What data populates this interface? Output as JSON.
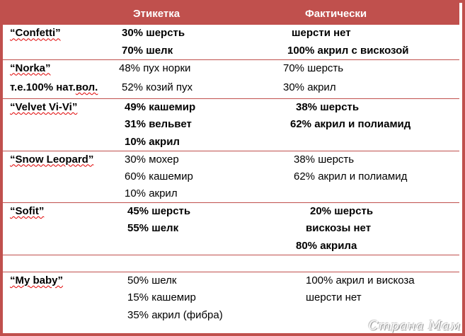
{
  "header": {
    "col1": "",
    "col2": "Этикетка",
    "col3": "Фактически"
  },
  "rows": [
    {
      "name": "“Confetti”",
      "label": "30% шерсть",
      "actual": "шерсти нет",
      "bold": true,
      "lp": 13,
      "ap": 25
    },
    {
      "name": "",
      "label": "70% шелк",
      "actual": "100% акрил с вискозой",
      "bold": true,
      "lp": 13,
      "ap": 19
    },
    {
      "name": "“Norka”",
      "label": "48% пух норки",
      "actual": "70% шерсть",
      "bold": false,
      "lp": 9,
      "ap": 13
    },
    {
      "name": "т.е.100% нат.вол.",
      "label": "52% козий пух",
      "actual": "30% акрил",
      "bold": false,
      "lp": 13,
      "ap": 13
    },
    {
      "name": "“Velvet Vi-Vi”",
      "label": "49% кашемир",
      "actual": "38% шерсть",
      "bold": true,
      "lp": 17,
      "ap": 31
    },
    {
      "name": "",
      "label": "31% вельвет",
      "actual": "62% акрил и полиамид",
      "bold": true,
      "lp": 17,
      "ap": 23
    },
    {
      "name": "",
      "label": "10% акрил",
      "actual": "",
      "bold": true,
      "lp": 17,
      "ap": 0
    },
    {
      "name": "“Snow Leopard”",
      "label": "30% мохер",
      "actual": "38% шерсть",
      "bold": false,
      "lp": 17,
      "ap": 28
    },
    {
      "name": "",
      "label": "60% кашемир",
      "actual": "62% акрил и полиамид",
      "bold": false,
      "lp": 17,
      "ap": 28
    },
    {
      "name": "",
      "label": "10% акрил",
      "actual": "",
      "bold": false,
      "lp": 17,
      "ap": 0
    },
    {
      "name": "“Sofit”",
      "label": "45% шерсть",
      "actual": "20% шерсть",
      "bold": true,
      "lp": 21,
      "ap": 51
    },
    {
      "name": "",
      "label": "55% шелк",
      "actual": "вискозы нет",
      "bold": true,
      "lp": 21,
      "ap": 45
    },
    {
      "name": "",
      "label": "",
      "actual": "80% акрила",
      "bold": true,
      "lp": 0,
      "ap": 31
    },
    {
      "name": "",
      "label": "",
      "actual": "",
      "bold": false,
      "lp": 0,
      "ap": 0
    },
    {
      "name": "“My baby”",
      "label": "50% шелк",
      "actual": "100% акрил и вискоза",
      "bold": false,
      "lp": 21,
      "ap": 45
    },
    {
      "name": "",
      "label": "15% кашемир",
      "actual": "шерсти нет",
      "bold": false,
      "lp": 21,
      "ap": 45
    },
    {
      "name": "",
      "label": "35% акрил (фибра)",
      "actual": "",
      "bold": false,
      "lp": 21,
      "ap": 0
    }
  ],
  "watermark": "Страна Мам"
}
